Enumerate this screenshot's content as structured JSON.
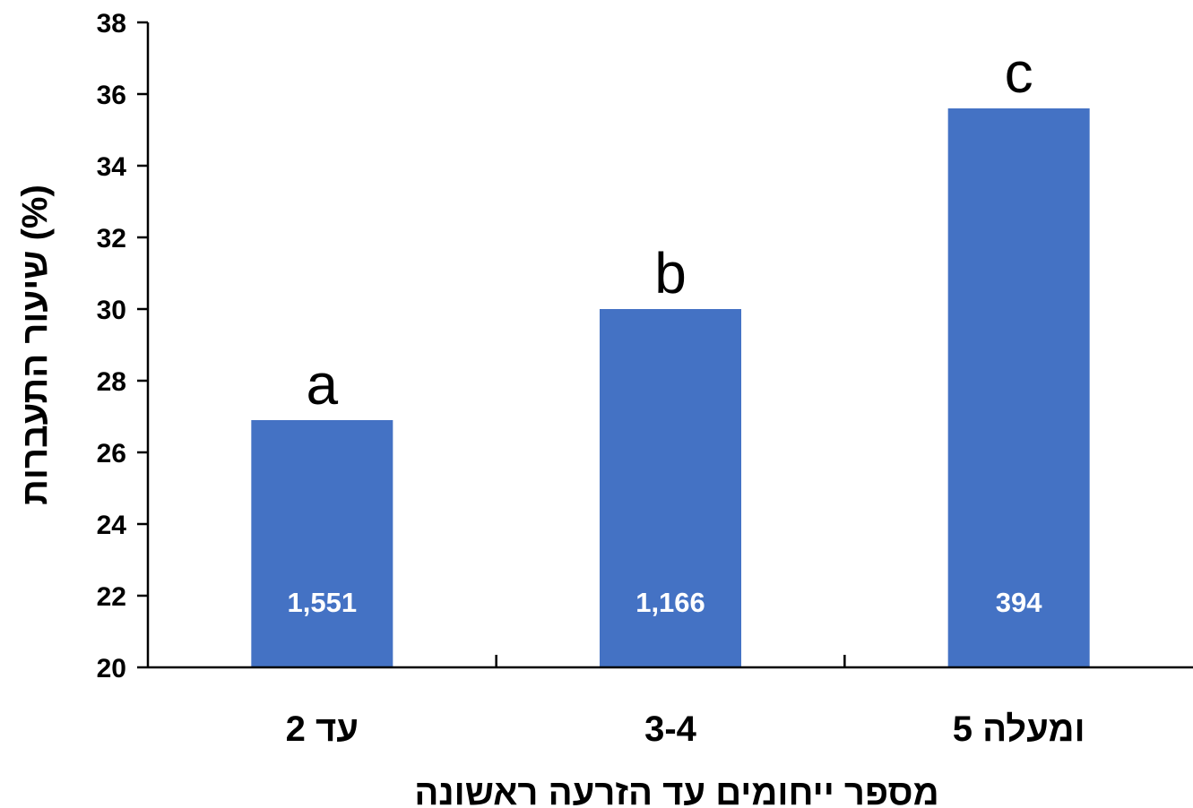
{
  "chart_data": {
    "type": "bar",
    "categories": [
      "עד 2",
      "3-4",
      "5 ומעלה"
    ],
    "values": [
      26.9,
      30.0,
      35.6
    ],
    "sample_sizes": [
      "1,551",
      "1,166",
      "394"
    ],
    "significance_letters": [
      "a",
      "b",
      "c"
    ],
    "xlabel": "מספר ייחומים עד הזרעה ראשונה",
    "ylabel": "שיעור התעברות (%)",
    "ylim": [
      20,
      38
    ],
    "yticks": [
      "20",
      "22",
      "24",
      "26",
      "28",
      "30",
      "32",
      "34",
      "36",
      "38"
    ],
    "grid": false,
    "bar_color": "#4472C4"
  }
}
